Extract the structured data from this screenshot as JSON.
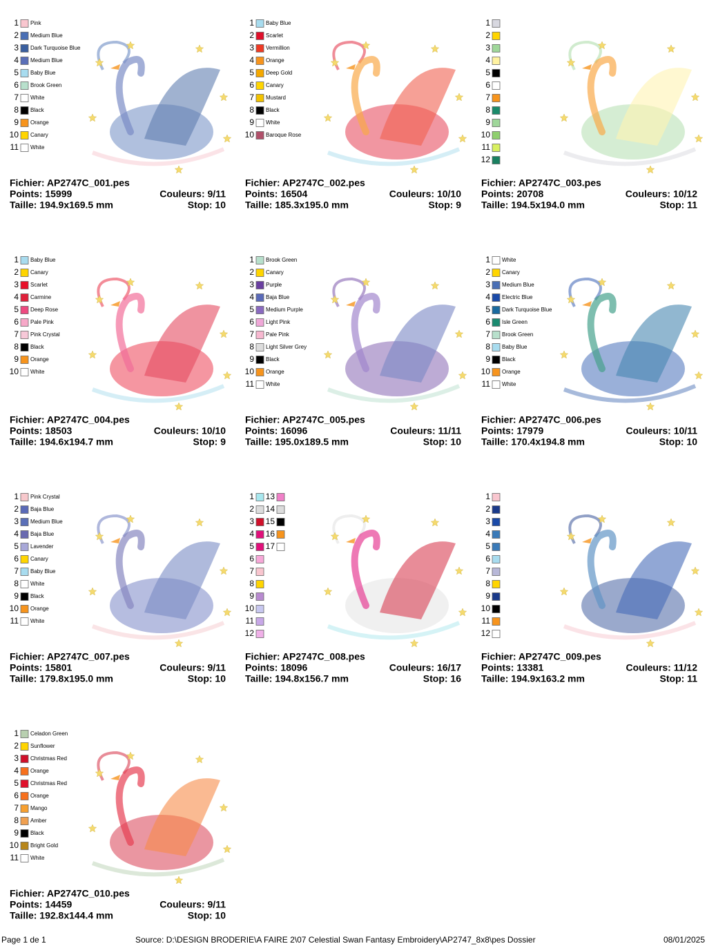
{
  "designs": [
    {
      "file": "Fichier: AP2747C_001.pes",
      "points": "Points: 15999",
      "colors_used": "Couleurs: 9/11",
      "size": "Taille: 194.9x169.5 mm",
      "stop": "Stop: 10",
      "colors": [
        {
          "number": 1,
          "name": "Pink",
          "color": "#f9c6cf"
        },
        {
          "number": 2,
          "name": "Medium Blue",
          "color": "#4a6fb5"
        },
        {
          "number": 3,
          "name": "Dark Turquoise Blue",
          "color": "#3a5f9f"
        },
        {
          "number": 4,
          "name": "Medium Blue",
          "color": "#5a6fb8"
        },
        {
          "number": 5,
          "name": "Baby Blue",
          "color": "#a8dcef"
        },
        {
          "number": 6,
          "name": "Brook Green",
          "color": "#b8e0cc"
        },
        {
          "number": 7,
          "name": "White",
          "color": "#ffffff"
        },
        {
          "number": 8,
          "name": "Black",
          "color": "#000000"
        },
        {
          "number": 9,
          "name": "Orange",
          "color": "#f7941d"
        },
        {
          "number": 10,
          "name": "Canary",
          "color": "#ffd500"
        },
        {
          "number": 11,
          "name": "White",
          "color": "#ffffff"
        }
      ]
    },
    {
      "file": "Fichier: AP2747C_002.pes",
      "points": "Points: 16504",
      "colors_used": "Couleurs: 10/10",
      "size": "Taille: 185.3x195.0 mm",
      "stop": "Stop: 9",
      "colors": [
        {
          "number": 1,
          "name": "Baby Blue",
          "color": "#a8dcef"
        },
        {
          "number": 2,
          "name": "Scarlet",
          "color": "#e0102a"
        },
        {
          "number": 3,
          "name": "Vermillion",
          "color": "#ee3a24"
        },
        {
          "number": 4,
          "name": "Orange",
          "color": "#f7941d"
        },
        {
          "number": 5,
          "name": "Deep Gold",
          "color": "#f5a800"
        },
        {
          "number": 6,
          "name": "Canary",
          "color": "#ffd500"
        },
        {
          "number": 7,
          "name": "Mustard",
          "color": "#f2c200"
        },
        {
          "number": 8,
          "name": "Black",
          "color": "#000000"
        },
        {
          "number": 9,
          "name": "White",
          "color": "#ffffff"
        },
        {
          "number": 10,
          "name": "Baroque Rose",
          "color": "#b0506a"
        }
      ]
    },
    {
      "file": "Fichier: AP2747C_003.pes",
      "points": "Points: 20708",
      "colors_used": "Couleurs: 10/12",
      "size": "Taille: 194.5x194.0 mm",
      "stop": "Stop: 11",
      "colors": [
        {
          "number": 1,
          "color": "#d8d8e0"
        },
        {
          "number": 2,
          "color": "#ffd500"
        },
        {
          "number": 3,
          "color": "#9fd79a"
        },
        {
          "number": 4,
          "color": "#fff2a0"
        },
        {
          "number": 5,
          "color": "#000000"
        },
        {
          "number": 6,
          "color": "#ffffff"
        },
        {
          "number": 7,
          "color": "#f7941d"
        },
        {
          "number": 8,
          "color": "#1a8a6a"
        },
        {
          "number": 9,
          "color": "#9fd79a"
        },
        {
          "number": 10,
          "color": "#8fcf6e"
        },
        {
          "number": 11,
          "color": "#d8f060"
        },
        {
          "number": 12,
          "color": "#1a8060"
        }
      ]
    },
    {
      "file": "Fichier: AP2747C_004.pes",
      "points": "Points: 18503",
      "colors_used": "Couleurs: 10/10",
      "size": "Taille: 194.6x194.7 mm",
      "stop": "Stop: 9",
      "colors": [
        {
          "number": 1,
          "name": "Baby Blue",
          "color": "#a8dcef"
        },
        {
          "number": 2,
          "name": "Canary",
          "color": "#ffd500"
        },
        {
          "number": 3,
          "name": "Scarlet",
          "color": "#e8102a"
        },
        {
          "number": 4,
          "name": "Carmine",
          "color": "#e0203a"
        },
        {
          "number": 5,
          "name": "Deep Rose",
          "color": "#ee4a80"
        },
        {
          "number": 6,
          "name": "Pale Pink",
          "color": "#f7a8c8"
        },
        {
          "number": 7,
          "name": "Pink Crystal",
          "color": "#f7c8d8"
        },
        {
          "number": 8,
          "name": "Black",
          "color": "#000000"
        },
        {
          "number": 9,
          "name": "Orange",
          "color": "#f7941d"
        },
        {
          "number": 10,
          "name": "White",
          "color": "#ffffff"
        }
      ]
    },
    {
      "file": "Fichier: AP2747C_005.pes",
      "points": "Points: 16096",
      "colors_used": "Couleurs: 11/11",
      "size": "Taille: 195.0x189.5 mm",
      "stop": "Stop: 10",
      "colors": [
        {
          "number": 1,
          "name": "Brook Green",
          "color": "#b8e0cc"
        },
        {
          "number": 2,
          "name": "Canary",
          "color": "#ffd500"
        },
        {
          "number": 3,
          "name": "Purple",
          "color": "#6a3fa0"
        },
        {
          "number": 4,
          "name": "Baja Blue",
          "color": "#5a6ab8"
        },
        {
          "number": 5,
          "name": "Medium Purple",
          "color": "#8a6ac0"
        },
        {
          "number": 6,
          "name": "Light Pink",
          "color": "#f0a8d8"
        },
        {
          "number": 7,
          "name": "Pale Pink",
          "color": "#f7b8d0"
        },
        {
          "number": 8,
          "name": "Light Silver Grey",
          "color": "#dcdcdc"
        },
        {
          "number": 9,
          "name": "Black",
          "color": "#000000"
        },
        {
          "number": 10,
          "name": "Orange",
          "color": "#f7941d"
        },
        {
          "number": 11,
          "name": "White",
          "color": "#ffffff"
        }
      ]
    },
    {
      "file": "Fichier: AP2747C_006.pes",
      "points": "Points: 17979",
      "colors_used": "Couleurs: 10/11",
      "size": "Taille: 170.4x194.8 mm",
      "stop": "Stop: 10",
      "colors": [
        {
          "number": 1,
          "name": "White",
          "color": "#ffffff"
        },
        {
          "number": 2,
          "name": "Canary",
          "color": "#ffd500"
        },
        {
          "number": 3,
          "name": "Medium Blue",
          "color": "#4a6fb5"
        },
        {
          "number": 4,
          "name": "Electric Blue",
          "color": "#1a4aa8"
        },
        {
          "number": 5,
          "name": "Dark Turquoise Blue",
          "color": "#1a6a9f"
        },
        {
          "number": 6,
          "name": "Isle Green",
          "color": "#1a8a70"
        },
        {
          "number": 7,
          "name": "Brook Green",
          "color": "#b8e0cc"
        },
        {
          "number": 8,
          "name": "Baby Blue",
          "color": "#a8dcef"
        },
        {
          "number": 9,
          "name": "Black",
          "color": "#000000"
        },
        {
          "number": 10,
          "name": "Orange",
          "color": "#f7941d"
        },
        {
          "number": 11,
          "name": "White",
          "color": "#ffffff"
        }
      ]
    },
    {
      "file": "Fichier: AP2747C_007.pes",
      "points": "Points: 15801",
      "colors_used": "Couleurs: 9/11",
      "size": "Taille: 179.8x195.0 mm",
      "stop": "Stop: 10",
      "colors": [
        {
          "number": 1,
          "name": "Pink Crystal",
          "color": "#f7c8cc"
        },
        {
          "number": 2,
          "name": "Baja Blue",
          "color": "#5a6ab8"
        },
        {
          "number": 3,
          "name": "Medium Blue",
          "color": "#5a6fb8"
        },
        {
          "number": 4,
          "name": "Baja Blue",
          "color": "#6a6ab0"
        },
        {
          "number": 5,
          "name": "Lavender",
          "color": "#a8a8d8"
        },
        {
          "number": 6,
          "name": "Canary",
          "color": "#ffd500"
        },
        {
          "number": 7,
          "name": "Baby Blue",
          "color": "#a8dcef"
        },
        {
          "number": 8,
          "name": "White",
          "color": "#ffffff"
        },
        {
          "number": 9,
          "name": "Black",
          "color": "#000000"
        },
        {
          "number": 10,
          "name": "Orange",
          "color": "#f7941d"
        },
        {
          "number": 11,
          "name": "White",
          "color": "#ffffff"
        }
      ]
    },
    {
      "file": "Fichier: AP2747C_008.pes",
      "points": "Points: 18096",
      "colors_used": "Couleurs: 16/17",
      "size": "Taille: 194.8x156.7 mm",
      "stop": "Stop: 16",
      "colors": [
        {
          "number": 1,
          "color": "#a8e8ef"
        },
        {
          "number": 2,
          "color": "#dcdcdc"
        },
        {
          "number": 3,
          "color": "#d0102a"
        },
        {
          "number": 4,
          "color": "#e0107a"
        },
        {
          "number": 5,
          "color": "#e0107a"
        },
        {
          "number": 6,
          "color": "#f7a8d8"
        },
        {
          "number": 7,
          "color": "#f9c6cf"
        },
        {
          "number": 8,
          "color": "#ffd500"
        },
        {
          "number": 9,
          "color": "#b88ad0"
        },
        {
          "number": 10,
          "color": "#c8c8f0"
        },
        {
          "number": 11,
          "color": "#c8a8e8"
        },
        {
          "number": 12,
          "color": "#f0b0e8"
        },
        {
          "number": 13,
          "color": "#f080c8"
        },
        {
          "number": 14,
          "color": "#dcdcdc"
        },
        {
          "number": 15,
          "color": "#000000"
        },
        {
          "number": 16,
          "color": "#f7941d"
        },
        {
          "number": 17,
          "color": "#ffffff"
        }
      ]
    },
    {
      "file": "Fichier: AP2747C_009.pes",
      "points": "Points: 13381",
      "colors_used": "Couleurs: 11/12",
      "size": "Taille: 194.9x163.2 mm",
      "stop": "Stop: 11",
      "colors": [
        {
          "number": 1,
          "color": "#f9c6cf"
        },
        {
          "number": 2,
          "color": "#1a3a8a"
        },
        {
          "number": 3,
          "color": "#1a4aa8"
        },
        {
          "number": 4,
          "color": "#3a7ab8"
        },
        {
          "number": 5,
          "color": "#3a7ab8"
        },
        {
          "number": 6,
          "color": "#a8dcef"
        },
        {
          "number": 7,
          "color": "#b8b8d8"
        },
        {
          "number": 8,
          "color": "#ffd500"
        },
        {
          "number": 9,
          "color": "#1a3a8a"
        },
        {
          "number": 10,
          "color": "#000000"
        },
        {
          "number": 11,
          "color": "#f7941d"
        },
        {
          "number": 12,
          "color": "#ffffff"
        }
      ]
    },
    {
      "file": "Fichier: AP2747C_010.pes",
      "points": "Points: 14459",
      "colors_used": "Couleurs: 9/11",
      "size": "Taille: 192.8x144.4 mm",
      "stop": "Stop: 10",
      "colors": [
        {
          "number": 1,
          "name": "Celadon Green",
          "color": "#b8d0b0"
        },
        {
          "number": 2,
          "name": "Sunflower",
          "color": "#ffd500"
        },
        {
          "number": 3,
          "name": "Christmas Red",
          "color": "#d0102a"
        },
        {
          "number": 4,
          "name": "Orange",
          "color": "#f7701d"
        },
        {
          "number": 5,
          "name": "Christmas Red",
          "color": "#e0102a"
        },
        {
          "number": 6,
          "name": "Orange",
          "color": "#f7701d"
        },
        {
          "number": 7,
          "name": "Mango",
          "color": "#f7a030"
        },
        {
          "number": 8,
          "name": "Amber",
          "color": "#f0a050"
        },
        {
          "number": 9,
          "name": "Black",
          "color": "#000000"
        },
        {
          "number": 10,
          "name": "Bright Gold",
          "color": "#b8861a"
        },
        {
          "number": 11,
          "name": "White",
          "color": "#ffffff"
        }
      ]
    }
  ],
  "footer": {
    "page": "Page 1 de 1",
    "source": "Source: D:\\DESIGN BRODERIE\\A FAIRE 2\\07 Celestial Swan Fantasy Embroidery\\AP2747_8x8\\pes Dossier",
    "date": "08/01/2025"
  }
}
